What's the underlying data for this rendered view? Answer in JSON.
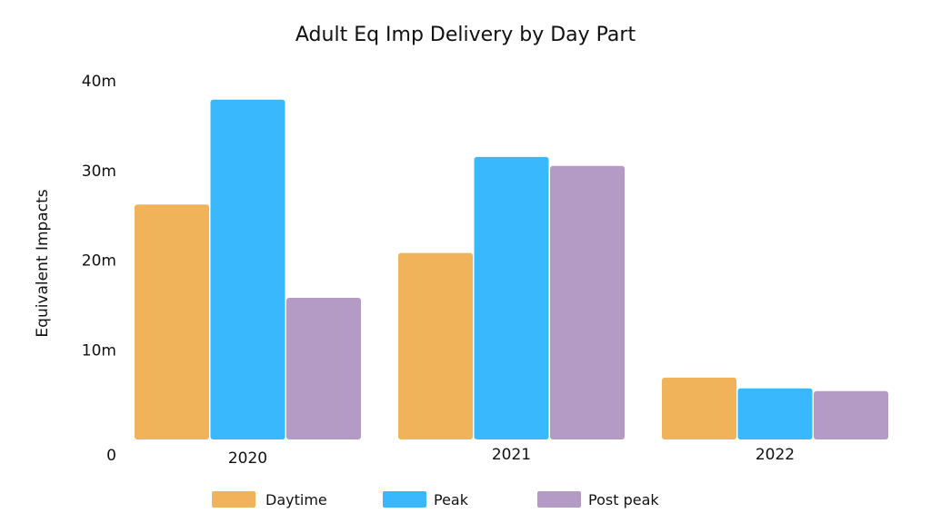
{
  "chart_data": {
    "type": "bar",
    "title": "Adult Eq Imp Delivery by Day Part",
    "xlabel": "",
    "ylabel": "Equivalent Impacts",
    "categories": [
      "2020",
      "2021",
      "2022"
    ],
    "series": [
      {
        "name": "Daytime",
        "values": [
          26200000,
          20800000,
          6900000
        ],
        "color": "#F0B35A"
      },
      {
        "name": "Peak",
        "values": [
          37900000,
          31500000,
          5700000
        ],
        "color": "#39B8FD"
      },
      {
        "name": "Post peak",
        "values": [
          15800000,
          30500000,
          5400000
        ],
        "color": "#B39BC5"
      }
    ],
    "ylim": [
      0,
      40000000
    ],
    "yticks": [
      {
        "value": 0,
        "label": "0"
      },
      {
        "value": 10000000,
        "label": "10m"
      },
      {
        "value": 20000000,
        "label": "20m"
      },
      {
        "value": 30000000,
        "label": "30m"
      },
      {
        "value": 40000000,
        "label": "40m"
      }
    ],
    "grid": false,
    "legend": "bottom-center"
  }
}
